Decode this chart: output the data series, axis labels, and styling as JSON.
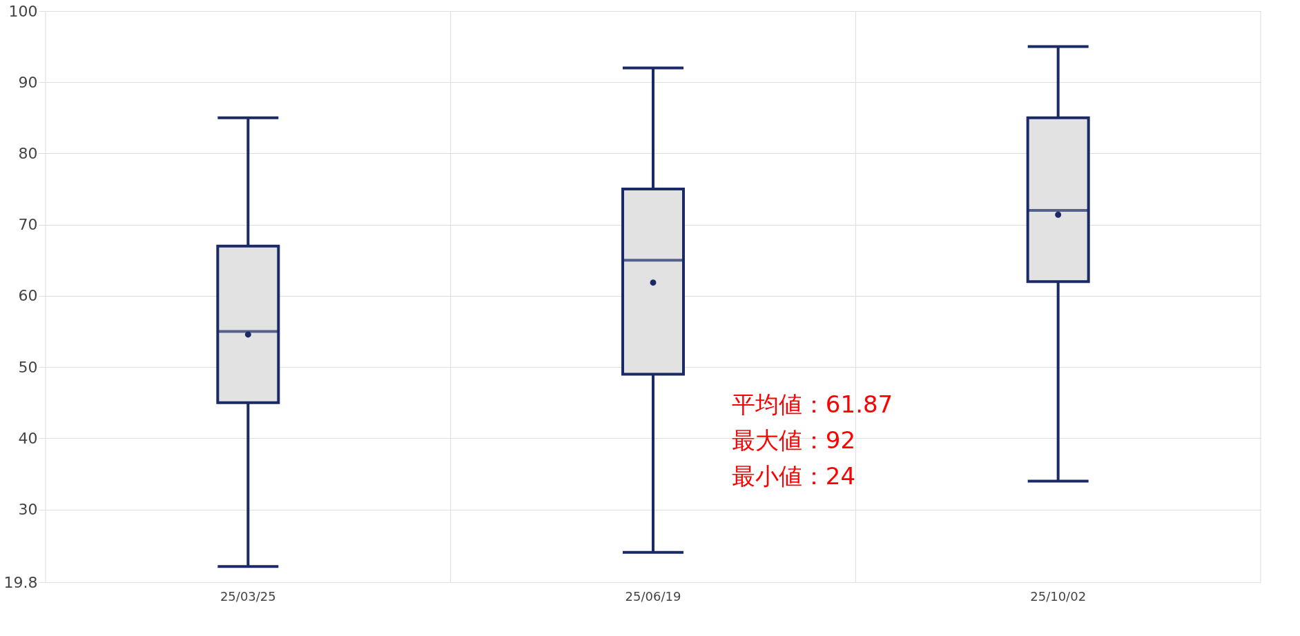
{
  "chart_data": {
    "type": "box",
    "categories": [
      "25/03/25",
      "25/06/19",
      "25/10/02"
    ],
    "boxes": [
      {
        "low": 22,
        "q1": 45,
        "median": 55,
        "q3": 67,
        "high": 85,
        "mean": 54.58
      },
      {
        "low": 24,
        "q1": 49,
        "median": 65,
        "q3": 75,
        "high": 92,
        "mean": 61.87
      },
      {
        "low": 34,
        "q1": 62,
        "median": 72,
        "q3": 85,
        "high": 95,
        "mean": 71.4
      }
    ],
    "color": "#1a2a66",
    "ylim": [
      19.8,
      100
    ],
    "yticks": [
      19.8,
      30,
      40,
      50,
      60,
      70,
      80,
      90,
      100
    ],
    "grid": true,
    "annotations": [
      "平均値：61.87\n最大値：92\n最小値：24"
    ]
  }
}
